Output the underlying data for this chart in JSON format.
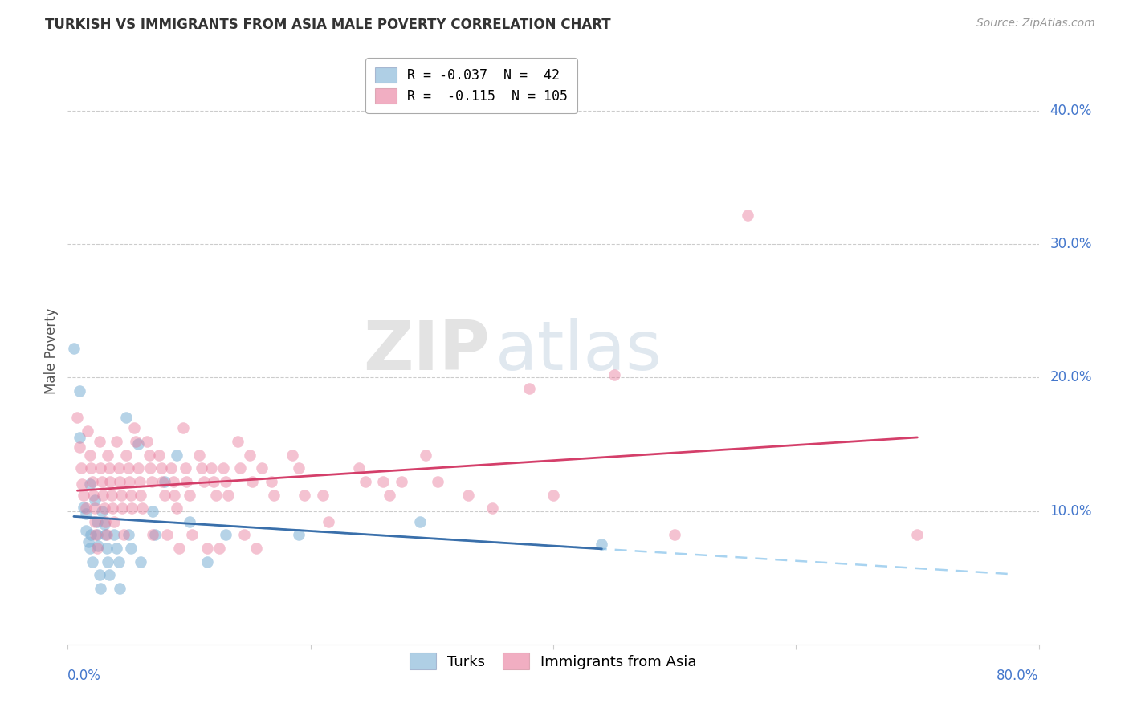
{
  "title": "TURKISH VS IMMIGRANTS FROM ASIA MALE POVERTY CORRELATION CHART",
  "source": "Source: ZipAtlas.com",
  "ylabel": "Male Poverty",
  "ytick_labels": [
    "10.0%",
    "20.0%",
    "30.0%",
    "40.0%"
  ],
  "ytick_values": [
    0.1,
    0.2,
    0.3,
    0.4
  ],
  "xlim": [
    0.0,
    0.8
  ],
  "ylim": [
    0.0,
    0.44
  ],
  "turks_color": "#7bafd4",
  "immigrants_color": "#e8799a",
  "turks_line_color": "#3a6faa",
  "immigrants_line_color": "#d43f6a",
  "dashed_color": "#99ccee",
  "background_color": "#ffffff",
  "grid_color": "#cccccc",
  "legend_label_turks": "R = -0.037  N =  42",
  "legend_label_imm": "R =  -0.115  N = 105",
  "bottom_label_turks": "Turks",
  "bottom_label_imm": "Immigrants from Asia",
  "turks_scatter": [
    [
      0.005,
      0.222
    ],
    [
      0.01,
      0.155
    ],
    [
      0.01,
      0.19
    ],
    [
      0.013,
      0.103
    ],
    [
      0.015,
      0.098
    ],
    [
      0.015,
      0.085
    ],
    [
      0.017,
      0.077
    ],
    [
      0.018,
      0.12
    ],
    [
      0.018,
      0.072
    ],
    [
      0.019,
      0.082
    ],
    [
      0.02,
      0.062
    ],
    [
      0.022,
      0.108
    ],
    [
      0.024,
      0.092
    ],
    [
      0.024,
      0.082
    ],
    [
      0.025,
      0.074
    ],
    [
      0.026,
      0.052
    ],
    [
      0.027,
      0.042
    ],
    [
      0.028,
      0.1
    ],
    [
      0.03,
      0.09
    ],
    [
      0.031,
      0.082
    ],
    [
      0.032,
      0.072
    ],
    [
      0.033,
      0.062
    ],
    [
      0.034,
      0.052
    ],
    [
      0.038,
      0.082
    ],
    [
      0.04,
      0.072
    ],
    [
      0.042,
      0.062
    ],
    [
      0.043,
      0.042
    ],
    [
      0.048,
      0.17
    ],
    [
      0.05,
      0.082
    ],
    [
      0.052,
      0.072
    ],
    [
      0.058,
      0.15
    ],
    [
      0.06,
      0.062
    ],
    [
      0.07,
      0.1
    ],
    [
      0.072,
      0.082
    ],
    [
      0.08,
      0.122
    ],
    [
      0.09,
      0.142
    ],
    [
      0.1,
      0.092
    ],
    [
      0.115,
      0.062
    ],
    [
      0.13,
      0.082
    ],
    [
      0.19,
      0.082
    ],
    [
      0.29,
      0.092
    ],
    [
      0.44,
      0.075
    ]
  ],
  "immigrants_scatter": [
    [
      0.008,
      0.17
    ],
    [
      0.01,
      0.148
    ],
    [
      0.011,
      0.132
    ],
    [
      0.012,
      0.12
    ],
    [
      0.013,
      0.112
    ],
    [
      0.015,
      0.102
    ],
    [
      0.016,
      0.16
    ],
    [
      0.018,
      0.142
    ],
    [
      0.019,
      0.132
    ],
    [
      0.02,
      0.122
    ],
    [
      0.021,
      0.112
    ],
    [
      0.022,
      0.102
    ],
    [
      0.022,
      0.092
    ],
    [
      0.023,
      0.082
    ],
    [
      0.024,
      0.072
    ],
    [
      0.026,
      0.152
    ],
    [
      0.027,
      0.132
    ],
    [
      0.028,
      0.122
    ],
    [
      0.029,
      0.112
    ],
    [
      0.03,
      0.102
    ],
    [
      0.031,
      0.092
    ],
    [
      0.032,
      0.082
    ],
    [
      0.033,
      0.142
    ],
    [
      0.034,
      0.132
    ],
    [
      0.035,
      0.122
    ],
    [
      0.036,
      0.112
    ],
    [
      0.037,
      0.102
    ],
    [
      0.038,
      0.092
    ],
    [
      0.04,
      0.152
    ],
    [
      0.042,
      0.132
    ],
    [
      0.043,
      0.122
    ],
    [
      0.044,
      0.112
    ],
    [
      0.045,
      0.102
    ],
    [
      0.046,
      0.082
    ],
    [
      0.048,
      0.142
    ],
    [
      0.05,
      0.132
    ],
    [
      0.051,
      0.122
    ],
    [
      0.052,
      0.112
    ],
    [
      0.053,
      0.102
    ],
    [
      0.055,
      0.162
    ],
    [
      0.056,
      0.152
    ],
    [
      0.058,
      0.132
    ],
    [
      0.059,
      0.122
    ],
    [
      0.06,
      0.112
    ],
    [
      0.061,
      0.102
    ],
    [
      0.065,
      0.152
    ],
    [
      0.067,
      0.142
    ],
    [
      0.068,
      0.132
    ],
    [
      0.069,
      0.122
    ],
    [
      0.07,
      0.082
    ],
    [
      0.075,
      0.142
    ],
    [
      0.077,
      0.132
    ],
    [
      0.078,
      0.122
    ],
    [
      0.08,
      0.112
    ],
    [
      0.082,
      0.082
    ],
    [
      0.085,
      0.132
    ],
    [
      0.087,
      0.122
    ],
    [
      0.088,
      0.112
    ],
    [
      0.09,
      0.102
    ],
    [
      0.092,
      0.072
    ],
    [
      0.095,
      0.162
    ],
    [
      0.097,
      0.132
    ],
    [
      0.098,
      0.122
    ],
    [
      0.1,
      0.112
    ],
    [
      0.102,
      0.082
    ],
    [
      0.108,
      0.142
    ],
    [
      0.11,
      0.132
    ],
    [
      0.112,
      0.122
    ],
    [
      0.115,
      0.072
    ],
    [
      0.118,
      0.132
    ],
    [
      0.12,
      0.122
    ],
    [
      0.122,
      0.112
    ],
    [
      0.125,
      0.072
    ],
    [
      0.128,
      0.132
    ],
    [
      0.13,
      0.122
    ],
    [
      0.132,
      0.112
    ],
    [
      0.14,
      0.152
    ],
    [
      0.142,
      0.132
    ],
    [
      0.145,
      0.082
    ],
    [
      0.15,
      0.142
    ],
    [
      0.152,
      0.122
    ],
    [
      0.155,
      0.072
    ],
    [
      0.16,
      0.132
    ],
    [
      0.168,
      0.122
    ],
    [
      0.17,
      0.112
    ],
    [
      0.185,
      0.142
    ],
    [
      0.19,
      0.132
    ],
    [
      0.195,
      0.112
    ],
    [
      0.21,
      0.112
    ],
    [
      0.215,
      0.092
    ],
    [
      0.24,
      0.132
    ],
    [
      0.245,
      0.122
    ],
    [
      0.26,
      0.122
    ],
    [
      0.265,
      0.112
    ],
    [
      0.275,
      0.122
    ],
    [
      0.295,
      0.142
    ],
    [
      0.305,
      0.122
    ],
    [
      0.33,
      0.112
    ],
    [
      0.35,
      0.102
    ],
    [
      0.38,
      0.192
    ],
    [
      0.4,
      0.112
    ],
    [
      0.45,
      0.202
    ],
    [
      0.5,
      0.082
    ],
    [
      0.56,
      0.322
    ],
    [
      0.7,
      0.082
    ]
  ]
}
